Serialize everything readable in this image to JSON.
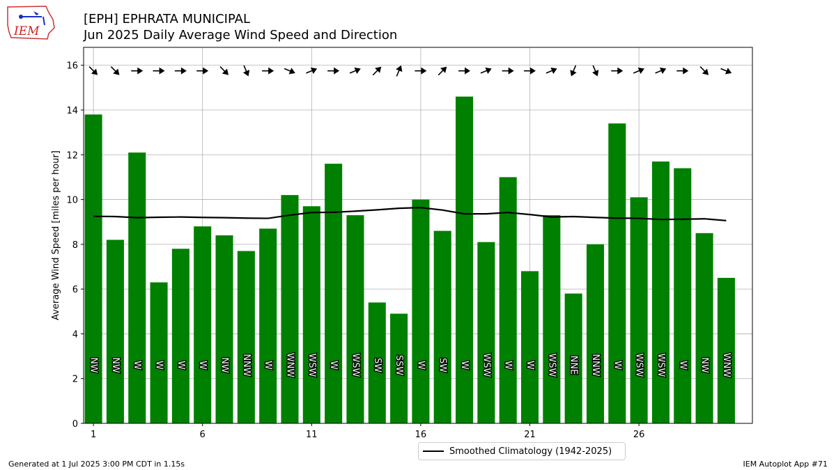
{
  "logo_text": "IEM",
  "chart_data": {
    "type": "bar",
    "title": "[EPH] EPHRATA MUNICIPAL",
    "subtitle": "Jun 2025 Daily Average Wind Speed and Direction",
    "xlabel": "",
    "ylabel": "Average Wind Speed [miles per hour]",
    "ylim": [
      0,
      16.8
    ],
    "xlim": [
      0.55,
      31.2
    ],
    "yticks": [
      0,
      2,
      4,
      6,
      8,
      10,
      12,
      14,
      16
    ],
    "xticks": [
      1,
      6,
      11,
      16,
      21,
      26
    ],
    "grid": true,
    "bar_color": "#008000",
    "days": [
      1,
      2,
      3,
      4,
      5,
      6,
      7,
      8,
      9,
      10,
      11,
      12,
      13,
      14,
      15,
      16,
      17,
      18,
      19,
      20,
      21,
      22,
      23,
      24,
      25,
      26,
      27,
      28,
      29,
      30
    ],
    "speeds": [
      13.8,
      8.2,
      12.1,
      6.3,
      7.8,
      8.8,
      8.4,
      7.7,
      8.7,
      10.2,
      9.7,
      11.6,
      9.3,
      5.4,
      4.9,
      10.0,
      8.6,
      14.6,
      8.1,
      11.0,
      6.8,
      9.3,
      5.8,
      8.0,
      13.4,
      10.1,
      11.7,
      11.4,
      8.5,
      6.5
    ],
    "directions": [
      "NW",
      "NW",
      "W",
      "W",
      "W",
      "W",
      "NW",
      "NNW",
      "W",
      "WNW",
      "WSW",
      "W",
      "WSW",
      "SW",
      "SSW",
      "W",
      "SW",
      "W",
      "WSW",
      "W",
      "W",
      "WSW",
      "NNE",
      "NNW",
      "W",
      "WSW",
      "WSW",
      "W",
      "NW",
      "WNW"
    ],
    "arrow_degrees": [
      315,
      315,
      270,
      270,
      270,
      270,
      315,
      337.5,
      270,
      292.5,
      247.5,
      270,
      247.5,
      225,
      202.5,
      270,
      225,
      270,
      247.5,
      270,
      270,
      247.5,
      22.5,
      337.5,
      270,
      247.5,
      247.5,
      270,
      315,
      292.5
    ],
    "climatology": {
      "name": "Smoothed Climatology (1942-2025)",
      "values": [
        9.25,
        9.24,
        9.19,
        9.21,
        9.22,
        9.2,
        9.19,
        9.17,
        9.16,
        9.3,
        9.42,
        9.43,
        9.48,
        9.54,
        9.61,
        9.64,
        9.53,
        9.36,
        9.36,
        9.42,
        9.33,
        9.22,
        9.24,
        9.2,
        9.17,
        9.16,
        9.11,
        9.12,
        9.14,
        9.06
      ]
    }
  },
  "footer": {
    "generated": "Generated at 1 Jul 2025 3:00 PM CDT in 1.15s",
    "app": "IEM Autoplot App #71"
  }
}
